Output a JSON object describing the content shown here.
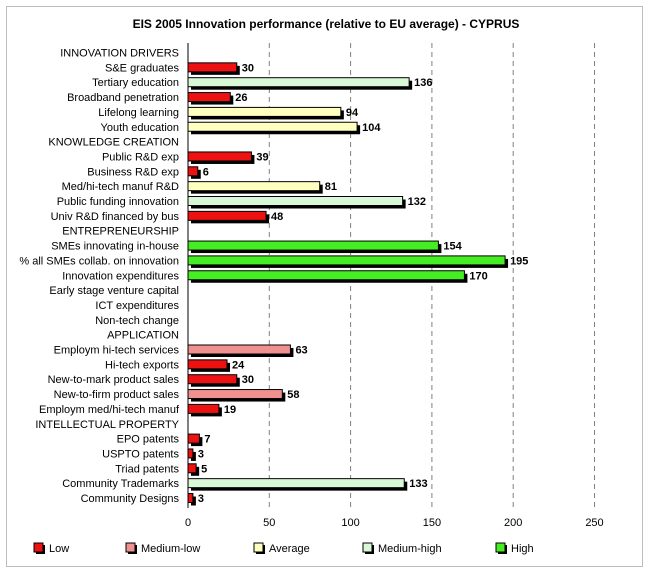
{
  "chart_data": {
    "type": "bar",
    "orientation": "horizontal",
    "title": "EIS 2005 Innovation performance (relative to EU average) - CYPRUS",
    "xlim": [
      0,
      250
    ],
    "xticks": [
      0,
      50,
      100,
      150,
      200,
      250
    ],
    "grid": "vertical dashed",
    "legend_position": "bottom",
    "series": [
      {
        "name": "Low",
        "color": "#ee1111"
      },
      {
        "name": "Medium-low",
        "color": "#f09090"
      },
      {
        "name": "Average",
        "color": "#ffffc0"
      },
      {
        "name": "Medium-high",
        "color": "#d8f8d8"
      },
      {
        "name": "High",
        "color": "#44ee22"
      }
    ],
    "rows": [
      {
        "label": "INNOVATION DRIVERS",
        "value": null,
        "level": null
      },
      {
        "label": "S&E graduates",
        "value": 30,
        "level": "Low"
      },
      {
        "label": "Tertiary education",
        "value": 136,
        "level": "Medium-high"
      },
      {
        "label": "Broadband penetration",
        "value": 26,
        "level": "Low"
      },
      {
        "label": "Lifelong learning",
        "value": 94,
        "level": "Average"
      },
      {
        "label": "Youth education",
        "value": 104,
        "level": "Average"
      },
      {
        "label": "KNOWLEDGE CREATION",
        "value": null,
        "level": null
      },
      {
        "label": "Public R&D exp",
        "value": 39,
        "level": "Low"
      },
      {
        "label": "Business R&D exp",
        "value": 6,
        "level": "Low"
      },
      {
        "label": "Med/hi-tech manuf R&D",
        "value": 81,
        "level": "Average"
      },
      {
        "label": "Public funding innovation",
        "value": 132,
        "level": "Medium-high"
      },
      {
        "label": "Univ R&D financed by bus",
        "value": 48,
        "level": "Low"
      },
      {
        "label": "ENTREPRENEURSHIP",
        "value": null,
        "level": null
      },
      {
        "label": "SMEs innovating in-house",
        "value": 154,
        "level": "High"
      },
      {
        "label": "% all SMEs collab. on innovation",
        "value": 195,
        "level": "High"
      },
      {
        "label": "Innovation expenditures",
        "value": 170,
        "level": "High"
      },
      {
        "label": "Early stage venture capital",
        "value": null,
        "level": null
      },
      {
        "label": "ICT expenditures",
        "value": null,
        "level": null
      },
      {
        "label": "Non-tech change",
        "value": null,
        "level": null
      },
      {
        "label": "APPLICATION",
        "value": null,
        "level": null
      },
      {
        "label": "Employm hi-tech services",
        "value": 63,
        "level": "Medium-low"
      },
      {
        "label": "Hi-tech exports",
        "value": 24,
        "level": "Low"
      },
      {
        "label": "New-to-mark product sales",
        "value": 30,
        "level": "Low"
      },
      {
        "label": "New-to-firm product sales",
        "value": 58,
        "level": "Medium-low"
      },
      {
        "label": "Employm med/hi-tech manuf",
        "value": 19,
        "level": "Low"
      },
      {
        "label": "INTELLECTUAL PROPERTY",
        "value": null,
        "level": null
      },
      {
        "label": "EPO patents",
        "value": 7,
        "level": "Low"
      },
      {
        "label": "USPTO patents",
        "value": 3,
        "level": "Low"
      },
      {
        "label": "Triad patents",
        "value": 5,
        "level": "Low"
      },
      {
        "label": "Community Trademarks",
        "value": 133,
        "level": "Medium-high"
      },
      {
        "label": "Community Designs",
        "value": 3,
        "level": "Low"
      }
    ]
  }
}
